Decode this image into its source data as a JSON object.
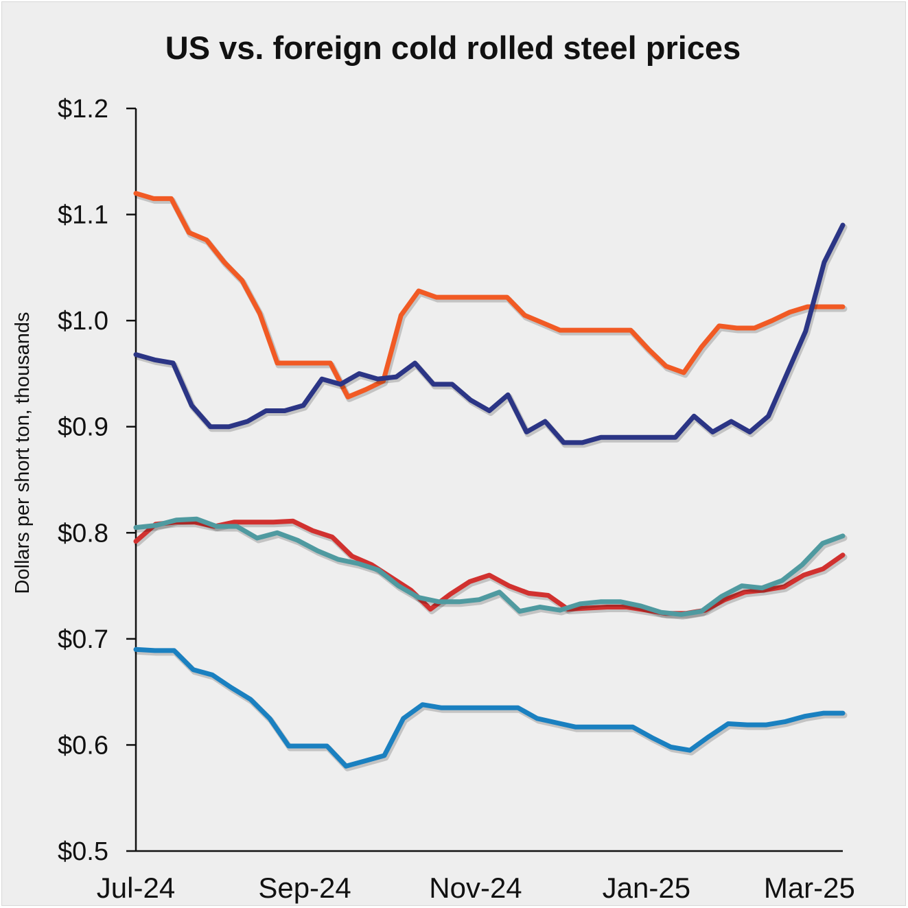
{
  "chart_data": {
    "type": "line",
    "title": "US vs. foreign cold rolled steel prices",
    "ylabel": "Dollars per short ton, thousands",
    "xlabel": "",
    "ylim": [
      0.5,
      1.2
    ],
    "y_ticks": [
      "$0.5",
      "$0.6",
      "$0.7",
      "$0.8",
      "$0.9",
      "$1.0",
      "$1.1",
      "$1.2"
    ],
    "x_ticks": [
      "Jul-24",
      "Sep-24",
      "Nov-24",
      "Jan-25",
      "Mar-25"
    ],
    "x_tick_index": [
      0,
      8.6,
      17.3,
      26.0,
      34.3
    ],
    "grid": false,
    "legend": "none",
    "series": [
      {
        "color": "#f15a24",
        "values": [
          1.12,
          1.115,
          1.115,
          1.083,
          1.076,
          1.055,
          1.038,
          1.007,
          0.96,
          0.96,
          0.96,
          0.96,
          0.928,
          0.935,
          0.943,
          1.005,
          1.028,
          1.022,
          1.022,
          1.022,
          1.022,
          1.022,
          1.005,
          0.998,
          0.991,
          0.991,
          0.991,
          0.991,
          0.991,
          0.973,
          0.957,
          0.951,
          0.975,
          0.995,
          0.993,
          0.993,
          1.0,
          1.008,
          1.013,
          1.013,
          1.013
        ]
      },
      {
        "color": "#2b3585",
        "values": [
          0.968,
          0.963,
          0.96,
          0.92,
          0.9,
          0.9,
          0.905,
          0.915,
          0.915,
          0.92,
          0.945,
          0.94,
          0.95,
          0.945,
          0.947,
          0.96,
          0.94,
          0.94,
          0.925,
          0.915,
          0.93,
          0.895,
          0.905,
          0.885,
          0.885,
          0.89,
          0.89,
          0.89,
          0.89,
          0.89,
          0.91,
          0.895,
          0.905,
          0.895,
          0.91,
          0.95,
          0.99,
          1.055,
          1.09
        ]
      },
      {
        "color": "#d1312f",
        "values": [
          0.792,
          0.808,
          0.81,
          0.81,
          0.806,
          0.81,
          0.81,
          0.81,
          0.811,
          0.802,
          0.796,
          0.778,
          0.77,
          0.758,
          0.746,
          0.728,
          0.742,
          0.754,
          0.76,
          0.75,
          0.743,
          0.741,
          0.728,
          0.729,
          0.73,
          0.73,
          0.727,
          0.724,
          0.724,
          0.727,
          0.737,
          0.744,
          0.746,
          0.749,
          0.76,
          0.766,
          0.779
        ]
      },
      {
        "color": "#4f9aa0",
        "values": [
          0.805,
          0.807,
          0.812,
          0.813,
          0.806,
          0.806,
          0.795,
          0.8,
          0.793,
          0.783,
          0.775,
          0.771,
          0.765,
          0.75,
          0.739,
          0.735,
          0.735,
          0.737,
          0.744,
          0.726,
          0.73,
          0.727,
          0.733,
          0.735,
          0.735,
          0.731,
          0.725,
          0.723,
          0.726,
          0.74,
          0.75,
          0.748,
          0.755,
          0.77,
          0.79,
          0.797
        ]
      },
      {
        "color": "#1a80c0",
        "values": [
          0.69,
          0.689,
          0.689,
          0.671,
          0.666,
          0.654,
          0.643,
          0.625,
          0.599,
          0.599,
          0.599,
          0.58,
          0.585,
          0.59,
          0.625,
          0.638,
          0.635,
          0.635,
          0.635,
          0.635,
          0.635,
          0.625,
          0.621,
          0.617,
          0.617,
          0.617,
          0.617,
          0.607,
          0.598,
          0.595,
          0.608,
          0.62,
          0.619,
          0.619,
          0.622,
          0.627,
          0.63,
          0.63
        ]
      }
    ]
  }
}
